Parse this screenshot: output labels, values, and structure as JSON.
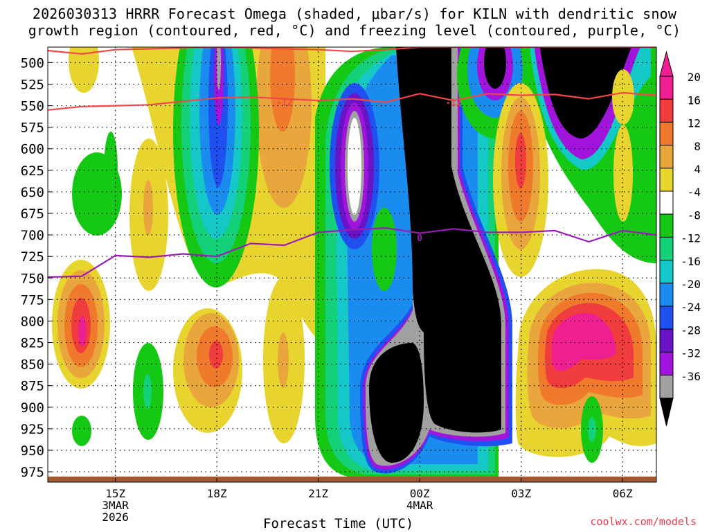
{
  "title_line1": "2026030313 HRRR Forecast Omega (shaded, μbar/s) for KILN with dendritic snow",
  "title_line2": "growth region (contoured, red, °C) and freezing level (contoured, purple, °C)",
  "x_axis_title": "Forecast Time (UTC)",
  "credit": "coolwx.com/models",
  "chart_data": {
    "type": "heatmap",
    "x_ticks": [
      {
        "label": "15Z",
        "sub1": "3MAR",
        "sub2": "2026"
      },
      {
        "label": "18Z",
        "sub1": "",
        "sub2": ""
      },
      {
        "label": "21Z",
        "sub1": "",
        "sub2": ""
      },
      {
        "label": "00Z",
        "sub1": "4MAR",
        "sub2": ""
      },
      {
        "label": "03Z",
        "sub1": "",
        "sub2": ""
      },
      {
        "label": "06Z",
        "sub1": "",
        "sub2": ""
      }
    ],
    "x_range_hours": [
      13,
      31
    ],
    "y_ticks": [
      500,
      525,
      550,
      575,
      600,
      625,
      650,
      675,
      700,
      725,
      750,
      775,
      800,
      825,
      850,
      875,
      900,
      925,
      950,
      975
    ],
    "y_range_hpa": [
      482,
      987
    ],
    "colorbar": {
      "labels": [
        "20",
        "16",
        "12",
        "8",
        "4",
        "-4",
        "-8",
        "-12",
        "-16",
        "-20",
        "-24",
        "-28",
        "-32",
        "-36"
      ],
      "bands": [
        {
          "from": 20,
          "to": 24,
          "color": "#ee1f90"
        },
        {
          "from": 16,
          "to": 20,
          "color": "#f03c3c"
        },
        {
          "from": 12,
          "to": 16,
          "color": "#ef7a2c"
        },
        {
          "from": 8,
          "to": 12,
          "color": "#e8a63c"
        },
        {
          "from": 4,
          "to": 8,
          "color": "#e8d42e"
        },
        {
          "from": -4,
          "to": 4,
          "color": "#ffffff"
        },
        {
          "from": -8,
          "to": -4,
          "color": "#14c814"
        },
        {
          "from": -12,
          "to": -8,
          "color": "#14d078"
        },
        {
          "from": -16,
          "to": -12,
          "color": "#14c8c8"
        },
        {
          "from": -20,
          "to": -16,
          "color": "#1a8cf0"
        },
        {
          "from": -24,
          "to": -20,
          "color": "#2050f0"
        },
        {
          "from": -28,
          "to": -24,
          "color": "#6a14c8"
        },
        {
          "from": -32,
          "to": -28,
          "color": "#a014dc"
        },
        {
          "from": -36,
          "to": -32,
          "color": "#a0a0a0"
        }
      ],
      "over_color": "#ee1f90",
      "under_color": "#000000"
    },
    "series": [
      {
        "name": "-12",
        "color": "#f04848",
        "x": [
          13,
          14,
          15,
          16,
          17,
          18,
          19,
          20,
          21,
          22,
          23,
          24,
          25,
          26,
          27,
          28,
          29,
          30,
          31
        ],
        "y": [
          555,
          551,
          550,
          549,
          545,
          541,
          540,
          542,
          544,
          542,
          546,
          536,
          544,
          536,
          538,
          537,
          542,
          535,
          538
        ]
      },
      {
        "name": "",
        "color": "#f04848",
        "x": [
          13,
          14,
          15,
          16,
          17,
          18,
          19,
          20,
          21,
          22,
          23,
          24,
          25,
          26,
          27,
          28,
          29,
          30,
          31
        ],
        "y": [
          486,
          490,
          485,
          484,
          483,
          482,
          483,
          484,
          485,
          487,
          485,
          482,
          482,
          482,
          482,
          482,
          482,
          482,
          482
        ]
      },
      {
        "name": "0",
        "color": "#9a1cb8",
        "x": [
          13,
          14,
          15,
          16,
          17,
          18,
          19,
          20,
          21,
          22,
          23,
          24,
          25,
          26,
          27,
          28,
          29,
          30,
          31
        ],
        "y": [
          749,
          748,
          724,
          726,
          722,
          725,
          710,
          712,
          697,
          694,
          692,
          698,
          693,
          697,
          697,
          695,
          708,
          695,
          700
        ]
      }
    ],
    "labels": [
      {
        "text": "-12",
        "x": 20.0,
        "y": 546,
        "color": "#f04848"
      },
      {
        "text": "-12",
        "x": 25.0,
        "y": 546,
        "color": "#f04848"
      },
      {
        "text": "0",
        "x": 24.0,
        "y": 703,
        "color": "#9a1cb8"
      }
    ],
    "grid": true
  }
}
